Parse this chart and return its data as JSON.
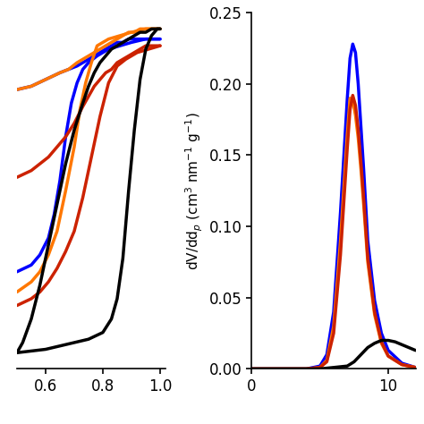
{
  "left_plot": {
    "xlim": [
      0.5,
      1.02
    ],
    "xticks": [
      0.6,
      0.8,
      1.0
    ],
    "curves": [
      {
        "color": "#0000FF",
        "adsorption_x": [
          0.5,
          0.55,
          0.58,
          0.61,
          0.63,
          0.65,
          0.67,
          0.69,
          0.71,
          0.73,
          0.75,
          0.78,
          0.82,
          0.86,
          0.9,
          0.95,
          1.0
        ],
        "adsorption_y": [
          0.28,
          0.3,
          0.33,
          0.38,
          0.45,
          0.55,
          0.68,
          0.78,
          0.84,
          0.88,
          0.9,
          0.92,
          0.94,
          0.95,
          0.96,
          0.97,
          0.97
        ],
        "desorption_x": [
          1.0,
          0.97,
          0.95,
          0.93,
          0.91,
          0.89,
          0.87,
          0.85,
          0.83,
          0.81,
          0.79,
          0.77,
          0.75,
          0.73,
          0.71,
          0.68,
          0.65,
          0.6,
          0.55,
          0.5
        ],
        "desorption_y": [
          0.97,
          0.97,
          0.97,
          0.97,
          0.97,
          0.97,
          0.96,
          0.96,
          0.95,
          0.94,
          0.93,
          0.92,
          0.91,
          0.9,
          0.89,
          0.88,
          0.87,
          0.85,
          0.83,
          0.82
        ]
      },
      {
        "color": "#FF7700",
        "adsorption_x": [
          0.5,
          0.55,
          0.58,
          0.61,
          0.64,
          0.67,
          0.7,
          0.72,
          0.74,
          0.76,
          0.78,
          0.82,
          0.86,
          0.9,
          0.95,
          1.0
        ],
        "adsorption_y": [
          0.22,
          0.25,
          0.28,
          0.33,
          0.4,
          0.52,
          0.65,
          0.76,
          0.84,
          0.9,
          0.95,
          0.97,
          0.98,
          0.99,
          1.0,
          1.0
        ],
        "desorption_x": [
          1.0,
          0.97,
          0.95,
          0.93,
          0.91,
          0.89,
          0.87,
          0.85,
          0.83,
          0.81,
          0.79,
          0.77,
          0.75,
          0.73,
          0.71,
          0.68,
          0.65,
          0.6,
          0.55,
          0.5
        ],
        "desorption_y": [
          1.0,
          1.0,
          1.0,
          1.0,
          0.99,
          0.99,
          0.98,
          0.97,
          0.96,
          0.95,
          0.94,
          0.93,
          0.92,
          0.91,
          0.9,
          0.88,
          0.87,
          0.85,
          0.83,
          0.82
        ]
      },
      {
        "color": "#CC2200",
        "adsorption_x": [
          0.5,
          0.55,
          0.58,
          0.61,
          0.64,
          0.67,
          0.7,
          0.73,
          0.76,
          0.79,
          0.82,
          0.85,
          0.88,
          0.92,
          0.96,
          1.0
        ],
        "adsorption_y": [
          0.18,
          0.2,
          0.22,
          0.25,
          0.29,
          0.34,
          0.4,
          0.5,
          0.62,
          0.74,
          0.84,
          0.89,
          0.91,
          0.93,
          0.94,
          0.95
        ],
        "desorption_x": [
          1.0,
          0.97,
          0.95,
          0.93,
          0.91,
          0.89,
          0.87,
          0.85,
          0.83,
          0.81,
          0.79,
          0.77,
          0.75,
          0.73,
          0.7,
          0.67,
          0.64,
          0.61,
          0.58,
          0.55,
          0.5
        ],
        "desorption_y": [
          0.95,
          0.95,
          0.95,
          0.94,
          0.93,
          0.92,
          0.91,
          0.9,
          0.88,
          0.87,
          0.85,
          0.83,
          0.8,
          0.77,
          0.72,
          0.68,
          0.65,
          0.62,
          0.6,
          0.58,
          0.56
        ]
      },
      {
        "color": "#000000",
        "adsorption_x": [
          0.5,
          0.55,
          0.6,
          0.65,
          0.7,
          0.75,
          0.8,
          0.83,
          0.85,
          0.87,
          0.89,
          0.91,
          0.93,
          0.95,
          0.97,
          0.99,
          1.0
        ],
        "adsorption_y": [
          0.04,
          0.045,
          0.05,
          0.06,
          0.07,
          0.08,
          0.1,
          0.14,
          0.2,
          0.32,
          0.52,
          0.7,
          0.85,
          0.94,
          0.98,
          1.0,
          1.0
        ],
        "desorption_x": [
          1.0,
          0.99,
          0.97,
          0.95,
          0.93,
          0.91,
          0.89,
          0.87,
          0.85,
          0.83,
          0.81,
          0.79,
          0.77,
          0.75,
          0.73,
          0.7,
          0.67,
          0.64,
          0.61,
          0.58,
          0.55,
          0.52,
          0.5
        ],
        "desorption_y": [
          1.0,
          1.0,
          1.0,
          0.99,
          0.99,
          0.98,
          0.97,
          0.96,
          0.95,
          0.94,
          0.92,
          0.9,
          0.87,
          0.83,
          0.78,
          0.7,
          0.6,
          0.48,
          0.36,
          0.24,
          0.14,
          0.07,
          0.04
        ]
      }
    ]
  },
  "right_plot": {
    "xlim": [
      0,
      12
    ],
    "xticks": [
      0,
      10
    ],
    "ylim": [
      0.0,
      0.25
    ],
    "yticks": [
      0.0,
      0.05,
      0.1,
      0.15,
      0.2,
      0.25
    ],
    "curves": [
      {
        "color": "#0000FF",
        "x": [
          0.0,
          3.0,
          4.0,
          5.0,
          5.5,
          6.0,
          6.5,
          7.0,
          7.2,
          7.4,
          7.6,
          7.8,
          8.0,
          8.2,
          8.5,
          9.0,
          9.5,
          10.0,
          11.0,
          12.0
        ],
        "y": [
          0.0,
          0.0,
          0.0,
          0.002,
          0.01,
          0.04,
          0.11,
          0.19,
          0.218,
          0.228,
          0.222,
          0.2,
          0.17,
          0.14,
          0.09,
          0.048,
          0.025,
          0.013,
          0.004,
          0.001
        ]
      },
      {
        "color": "#FF7700",
        "x": [
          0.0,
          3.0,
          4.0,
          5.0,
          5.5,
          6.0,
          6.5,
          7.0,
          7.2,
          7.4,
          7.6,
          7.8,
          8.0,
          8.2,
          8.5,
          9.0,
          9.5,
          10.0,
          11.0,
          12.0
        ],
        "y": [
          0.0,
          0.0,
          0.0,
          0.001,
          0.006,
          0.03,
          0.09,
          0.165,
          0.19,
          0.188,
          0.178,
          0.162,
          0.14,
          0.115,
          0.075,
          0.038,
          0.018,
          0.009,
          0.003,
          0.001
        ]
      },
      {
        "color": "#CC2200",
        "x": [
          0.0,
          3.0,
          4.0,
          5.0,
          5.5,
          6.0,
          6.5,
          7.0,
          7.2,
          7.4,
          7.6,
          7.8,
          8.0,
          8.2,
          8.5,
          9.0,
          9.5,
          10.0,
          11.0,
          12.0
        ],
        "y": [
          0.0,
          0.0,
          0.0,
          0.001,
          0.005,
          0.025,
          0.08,
          0.155,
          0.182,
          0.192,
          0.185,
          0.168,
          0.145,
          0.12,
          0.078,
          0.04,
          0.019,
          0.009,
          0.003,
          0.001
        ]
      },
      {
        "color": "#000000",
        "x": [
          0.0,
          3.0,
          4.0,
          5.0,
          6.0,
          7.0,
          7.5,
          8.0,
          8.5,
          9.0,
          9.5,
          10.0,
          10.5,
          11.0,
          12.0
        ],
        "y": [
          0.0,
          0.0,
          0.0,
          0.0,
          0.001,
          0.002,
          0.005,
          0.01,
          0.015,
          0.018,
          0.02,
          0.02,
          0.019,
          0.017,
          0.013
        ]
      }
    ]
  },
  "linewidth": 2.5,
  "bg_color": "#ffffff",
  "tick_fontsize": 12,
  "ylabel_fontsize": 11
}
